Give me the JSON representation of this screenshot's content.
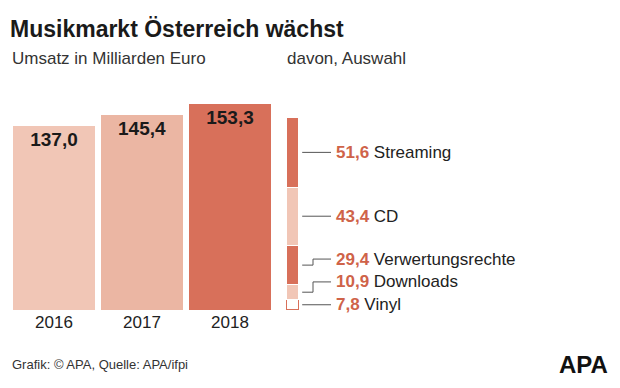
{
  "chart_data": [
    {
      "type": "bar",
      "title": "Musikmarkt Österreich wächst",
      "subtitle": "Umsatz in Milliarden Euro",
      "categories": [
        "2016",
        "2017",
        "2018"
      ],
      "values": [
        137.0,
        145.4,
        153.3
      ],
      "value_labels": [
        "137,0",
        "145,4",
        "153,3"
      ],
      "colors": [
        "#f1c6b6",
        "#ebb6a3",
        "#d8705a"
      ],
      "ylim": [
        0,
        160
      ],
      "data_labels": true,
      "tick_labels": "x",
      "annotations": [
        "Grafik: © APA, Quelle: APA/ifpi",
        "APA"
      ]
    },
    {
      "type": "bar",
      "title": "davon, Auswahl",
      "stacked": true,
      "ylim": [
        0,
        160
      ],
      "data_labels": true,
      "tick_labels": false,
      "series": [
        {
          "name": "Streaming",
          "values": [
            51.6
          ],
          "value_labels": [
            "51,6"
          ],
          "color": "#d8705a"
        },
        {
          "name": "CD",
          "values": [
            43.4
          ],
          "value_labels": [
            "43,4"
          ],
          "color": "#f1c6b6"
        },
        {
          "name": "Verwertungsrechte",
          "values": [
            29.4
          ],
          "value_labels": [
            "29,4"
          ],
          "color": "#d8705a"
        },
        {
          "name": "Downloads",
          "values": [
            10.9
          ],
          "value_labels": [
            "10,9"
          ],
          "color": "#f1c6b6"
        },
        {
          "name": "Vinyl",
          "values": [
            7.8
          ],
          "value_labels": [
            "7,8"
          ],
          "color": "#ffffff"
        }
      ]
    }
  ]
}
